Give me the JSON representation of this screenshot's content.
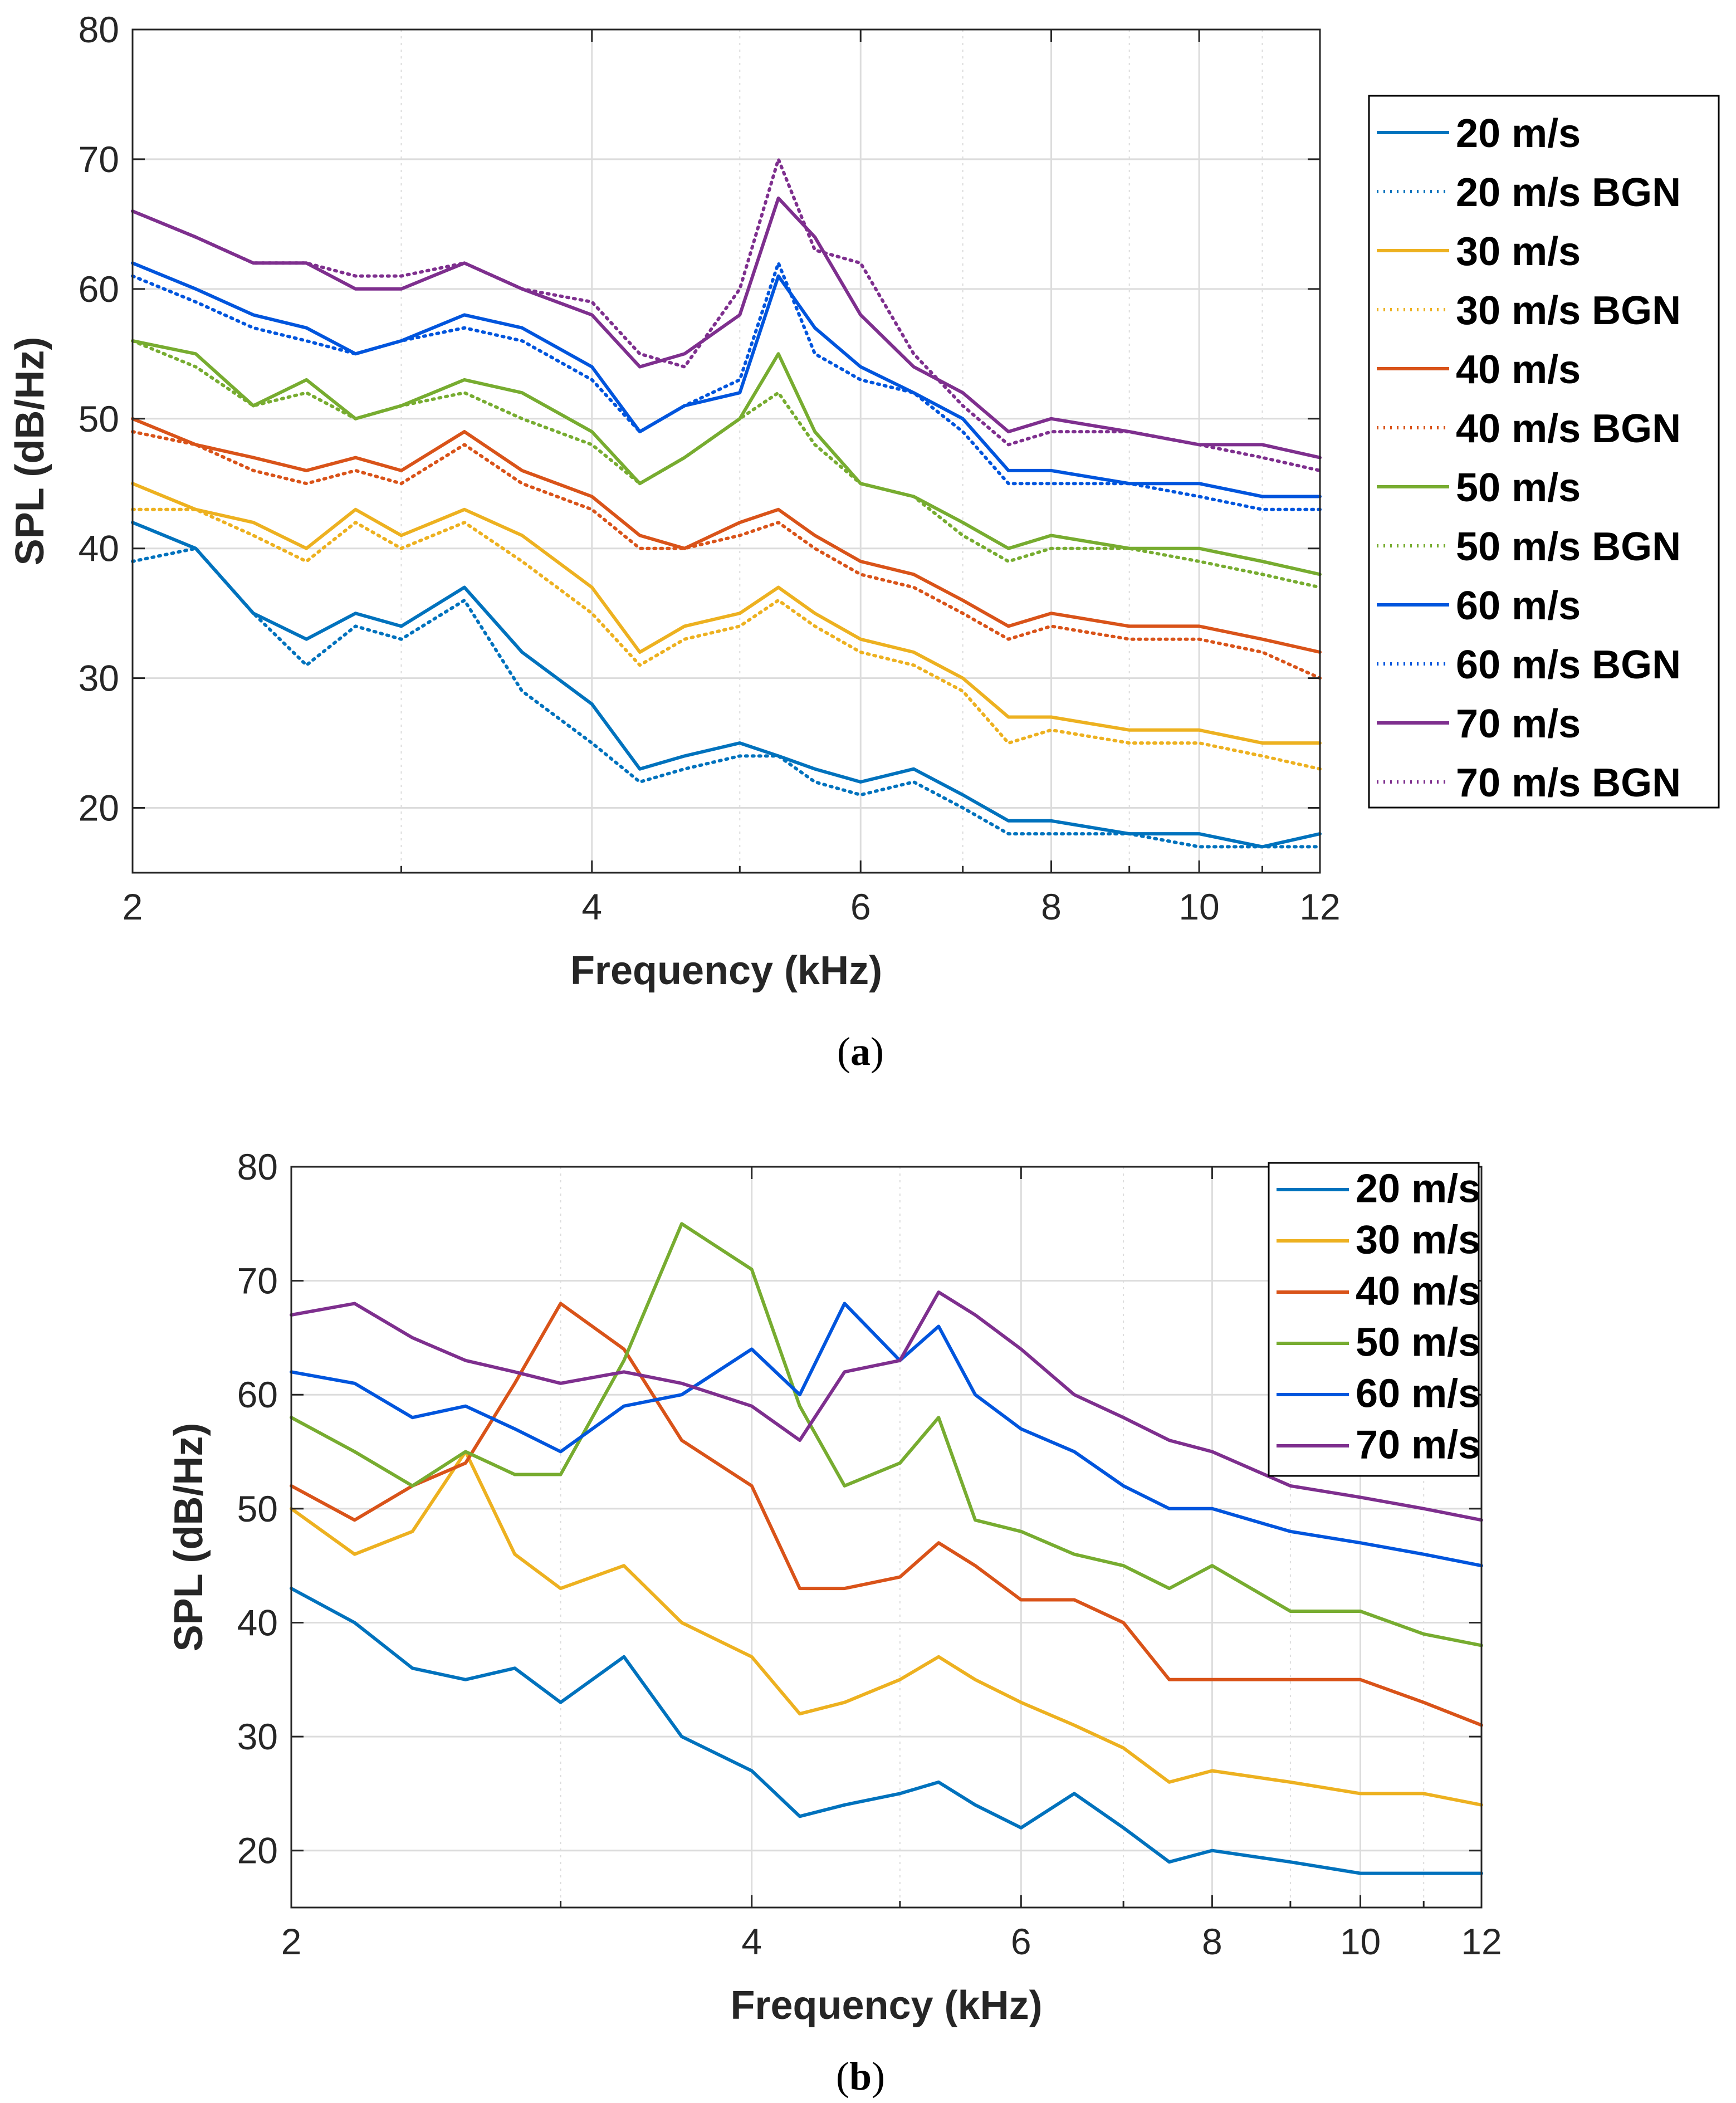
{
  "colors": {
    "20 m/s": "#0072BD",
    "30 m/s": "#EDB120",
    "40 m/s": "#D95319",
    "50 m/s": "#77AC30",
    "60 m/s": "#0055DD",
    "70 m/s": "#7E2F8E",
    "grid": "#DCDCDC",
    "axis": "#262626"
  },
  "captions": {
    "a_letter": "a",
    "b_letter": "b",
    "open": "(",
    "close": ")"
  },
  "chart_data": [
    {
      "id": "a",
      "type": "line",
      "xscale": "log",
      "xlabel": "Frequency (kHz)",
      "ylabel": "SPL (dB/Hz)",
      "xlim": [
        2,
        12
      ],
      "ylim": [
        15,
        80
      ],
      "xticks": [
        2,
        4,
        6,
        8,
        10,
        12
      ],
      "yticks": [
        20,
        30,
        40,
        50,
        60,
        70,
        80
      ],
      "minor_x_grid": [
        3,
        5,
        7,
        9,
        11
      ],
      "grid": true,
      "legend_position": "outside-right-top",
      "x": [
        2.0,
        2.2,
        2.4,
        2.6,
        2.8,
        3.0,
        3.3,
        3.6,
        4.0,
        4.3,
        4.6,
        5.0,
        5.3,
        5.6,
        6.0,
        6.5,
        7.0,
        7.5,
        8.0,
        9.0,
        10.0,
        11.0,
        12.0
      ],
      "series": [
        {
          "name": "20 m/s",
          "style": "solid",
          "values": [
            42,
            40,
            35,
            33,
            35,
            34,
            37,
            32,
            28,
            23,
            24,
            25,
            24,
            23,
            22,
            23,
            21,
            19,
            19,
            18,
            18,
            17,
            18
          ]
        },
        {
          "name": "20 m/s BGN",
          "style": "dotted",
          "values": [
            39,
            40,
            35,
            31,
            34,
            33,
            36,
            29,
            25,
            22,
            23,
            24,
            24,
            22,
            21,
            22,
            20,
            18,
            18,
            18,
            17,
            17,
            17
          ]
        },
        {
          "name": "30 m/s",
          "style": "solid",
          "values": [
            45,
            43,
            42,
            40,
            43,
            41,
            43,
            41,
            37,
            32,
            34,
            35,
            37,
            35,
            33,
            32,
            30,
            27,
            27,
            26,
            26,
            25,
            25
          ]
        },
        {
          "name": "30 m/s BGN",
          "style": "dotted",
          "values": [
            43,
            43,
            41,
            39,
            42,
            40,
            42,
            39,
            35,
            31,
            33,
            34,
            36,
            34,
            32,
            31,
            29,
            25,
            26,
            25,
            25,
            24,
            23
          ]
        },
        {
          "name": "40 m/s",
          "style": "solid",
          "values": [
            50,
            48,
            47,
            46,
            47,
            46,
            49,
            46,
            44,
            41,
            40,
            42,
            43,
            41,
            39,
            38,
            36,
            34,
            35,
            34,
            34,
            33,
            32
          ]
        },
        {
          "name": "40 m/s BGN",
          "style": "dotted",
          "values": [
            49,
            48,
            46,
            45,
            46,
            45,
            48,
            45,
            43,
            40,
            40,
            41,
            42,
            40,
            38,
            37,
            35,
            33,
            34,
            33,
            33,
            32,
            30
          ]
        },
        {
          "name": "50 m/s",
          "style": "solid",
          "values": [
            56,
            55,
            51,
            53,
            50,
            51,
            53,
            52,
            49,
            45,
            47,
            50,
            55,
            49,
            45,
            44,
            42,
            40,
            41,
            40,
            40,
            39,
            38
          ]
        },
        {
          "name": "50 m/s BGN",
          "style": "dotted",
          "values": [
            56,
            54,
            51,
            52,
            50,
            51,
            52,
            50,
            48,
            45,
            47,
            50,
            52,
            48,
            45,
            44,
            41,
            39,
            40,
            40,
            39,
            38,
            37
          ]
        },
        {
          "name": "60 m/s",
          "style": "solid",
          "values": [
            62,
            60,
            58,
            57,
            55,
            56,
            58,
            57,
            54,
            49,
            51,
            52,
            61,
            57,
            54,
            52,
            50,
            46,
            46,
            45,
            45,
            44,
            44
          ]
        },
        {
          "name": "60 m/s BGN",
          "style": "dotted",
          "values": [
            61,
            59,
            57,
            56,
            55,
            56,
            57,
            56,
            53,
            49,
            51,
            53,
            62,
            55,
            53,
            52,
            49,
            45,
            45,
            45,
            44,
            43,
            43
          ]
        },
        {
          "name": "70 m/s",
          "style": "solid",
          "values": [
            66,
            64,
            62,
            62,
            60,
            60,
            62,
            60,
            58,
            54,
            55,
            58,
            67,
            64,
            58,
            54,
            52,
            49,
            50,
            49,
            48,
            48,
            47
          ]
        },
        {
          "name": "70 m/s BGN",
          "style": "dotted",
          "values": [
            66,
            64,
            62,
            62,
            61,
            61,
            62,
            60,
            59,
            55,
            54,
            60,
            70,
            63,
            62,
            55,
            51,
            48,
            49,
            49,
            48,
            47,
            46
          ]
        }
      ]
    },
    {
      "id": "b",
      "type": "line",
      "xscale": "log",
      "xlabel": "Frequency (kHz)",
      "ylabel": "SPL (dB/Hz)",
      "xlim": [
        2,
        12
      ],
      "ylim": [
        15,
        80
      ],
      "xticks": [
        2,
        4,
        6,
        8,
        10,
        12
      ],
      "yticks": [
        20,
        30,
        40,
        50,
        60,
        70,
        80
      ],
      "minor_x_grid": [
        3,
        5,
        7,
        9,
        11
      ],
      "grid": true,
      "legend_position": "top-right",
      "x": [
        2.0,
        2.2,
        2.4,
        2.6,
        2.8,
        3.0,
        3.3,
        3.6,
        4.0,
        4.3,
        4.6,
        5.0,
        5.3,
        5.6,
        6.0,
        6.5,
        7.0,
        7.5,
        8.0,
        9.0,
        10.0,
        11.0,
        12.0
      ],
      "series": [
        {
          "name": "20 m/s",
          "style": "solid",
          "values": [
            43,
            40,
            36,
            35,
            36,
            33,
            37,
            30,
            27,
            23,
            24,
            25,
            26,
            24,
            22,
            25,
            22,
            19,
            20,
            19,
            18,
            18,
            18
          ]
        },
        {
          "name": "30 m/s",
          "style": "solid",
          "values": [
            50,
            46,
            48,
            55,
            46,
            43,
            45,
            40,
            37,
            32,
            33,
            35,
            37,
            35,
            33,
            31,
            29,
            26,
            27,
            26,
            25,
            25,
            24
          ]
        },
        {
          "name": "40 m/s",
          "style": "solid",
          "values": [
            52,
            49,
            52,
            54,
            61,
            68,
            64,
            56,
            52,
            43,
            43,
            44,
            47,
            45,
            42,
            42,
            40,
            35,
            35,
            35,
            35,
            33,
            31
          ]
        },
        {
          "name": "50 m/s",
          "style": "solid",
          "values": [
            58,
            55,
            52,
            55,
            53,
            53,
            63,
            75,
            71,
            59,
            52,
            54,
            58,
            49,
            48,
            46,
            45,
            43,
            45,
            41,
            41,
            39,
            38
          ]
        },
        {
          "name": "60 m/s",
          "style": "solid",
          "values": [
            62,
            61,
            58,
            59,
            57,
            55,
            59,
            60,
            64,
            60,
            68,
            63,
            66,
            60,
            57,
            55,
            52,
            50,
            50,
            48,
            47,
            46,
            45
          ]
        },
        {
          "name": "70 m/s",
          "style": "solid",
          "values": [
            67,
            68,
            65,
            63,
            62,
            61,
            62,
            61,
            59,
            56,
            62,
            63,
            69,
            67,
            64,
            60,
            58,
            56,
            55,
            52,
            51,
            50,
            49
          ]
        }
      ]
    }
  ]
}
